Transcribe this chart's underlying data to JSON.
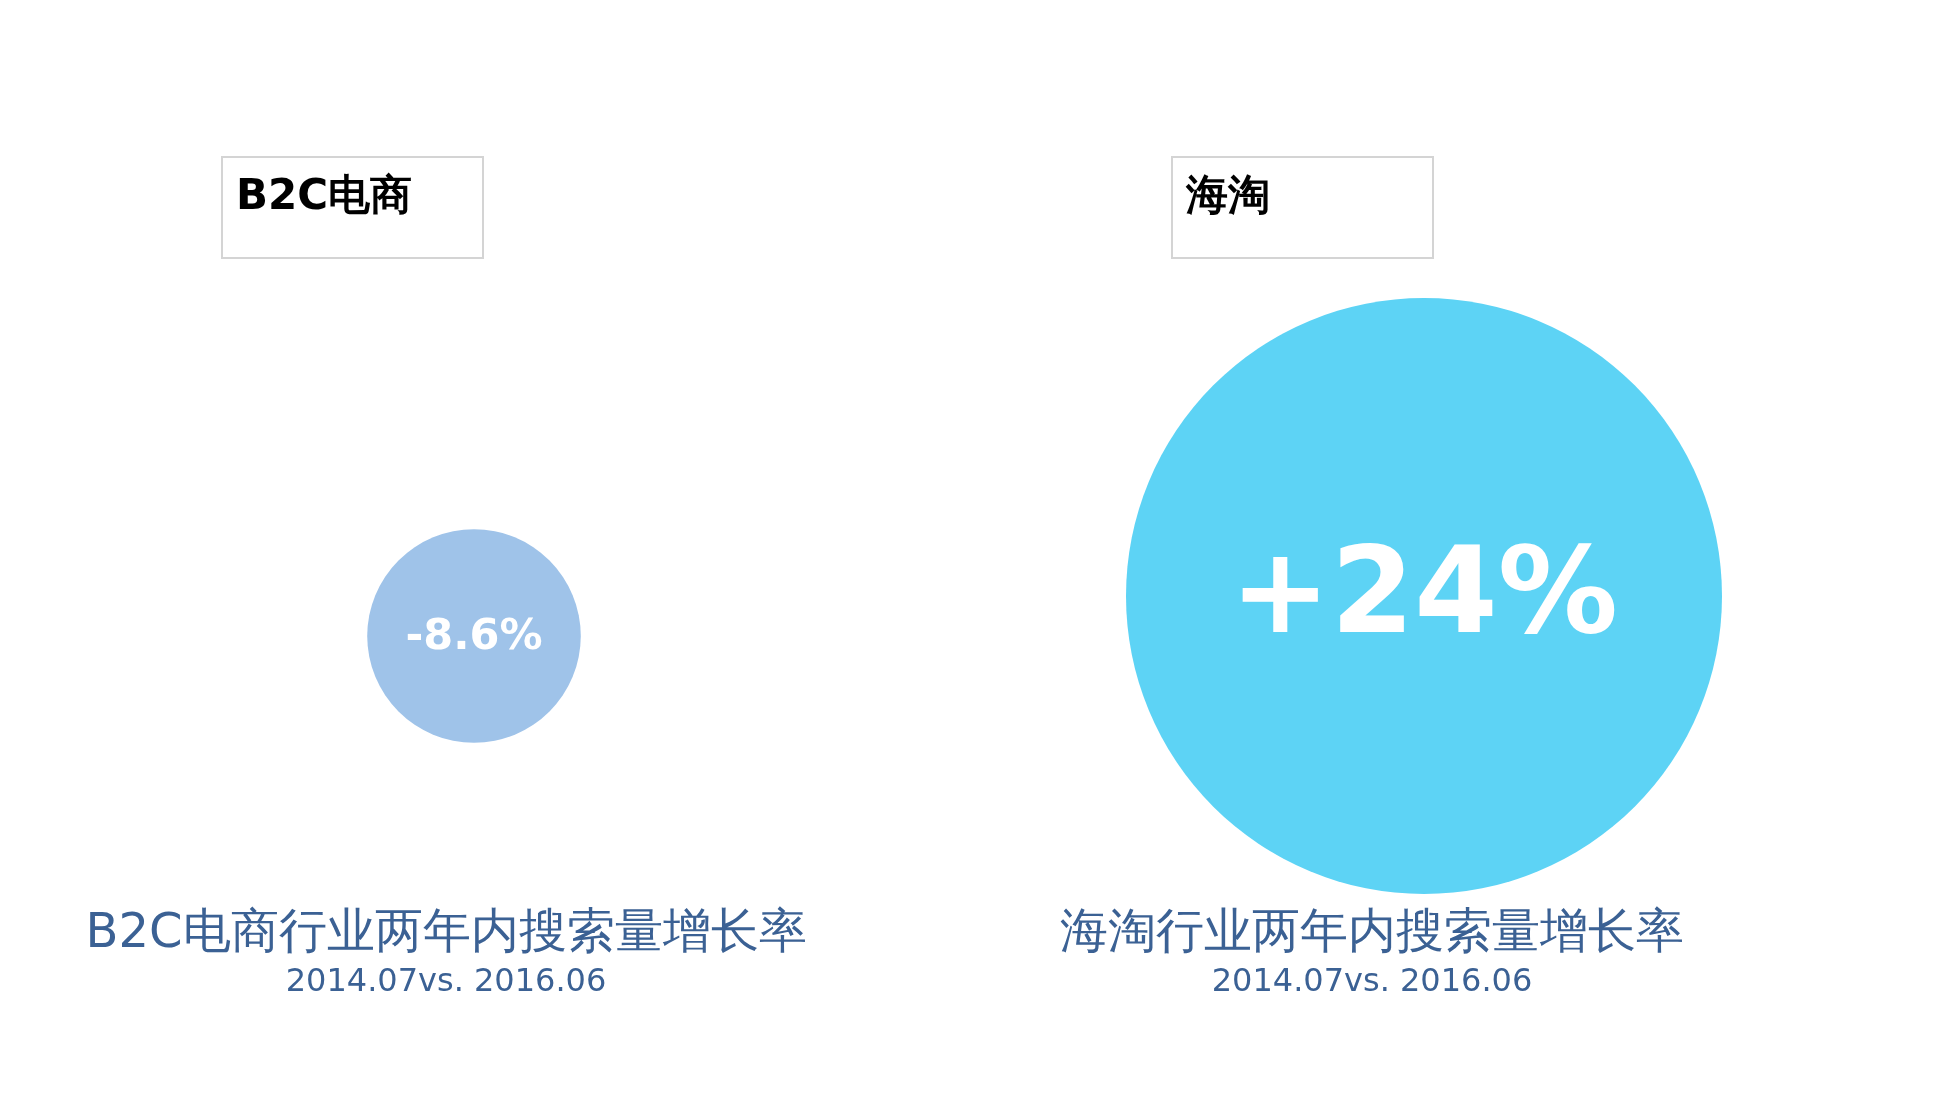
{
  "chart_data": {
    "type": "other",
    "categories": [
      "B2C电商行业两年内搜索量增长率",
      "海淘行业两年内搜索量增长率"
    ],
    "subtitle": "2014.07vs. 2016.06",
    "values": [
      -8.6,
      24
    ],
    "value_labels": [
      "-8.6%",
      "+24%"
    ],
    "colors": [
      "#9fc3e9",
      "#5dd3f5"
    ],
    "annotations": [
      "B2C电商",
      "海淘"
    ]
  }
}
